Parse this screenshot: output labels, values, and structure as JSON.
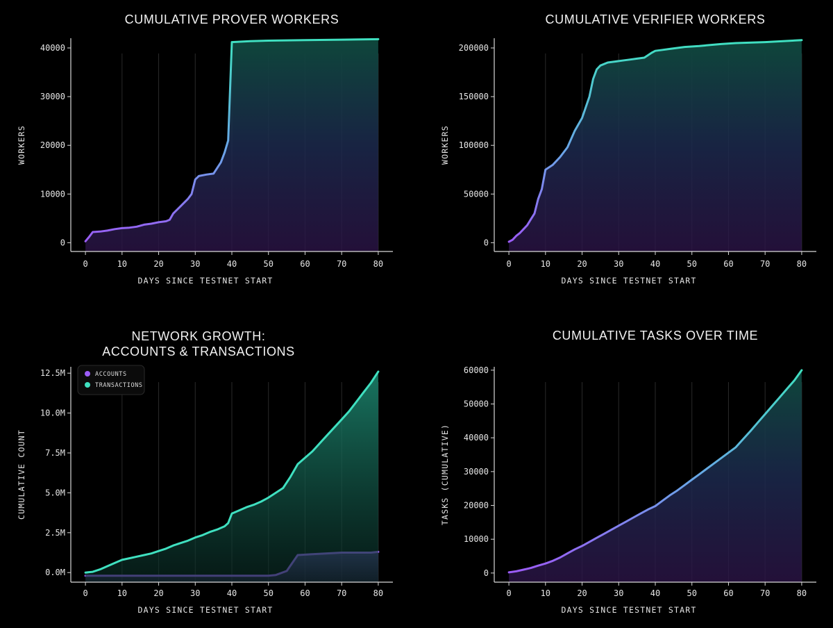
{
  "colors": {
    "background": "#000000",
    "purple": "#9b5cf6",
    "teal": "#3fe0c0",
    "blue": "#6aa5e8",
    "axis": "#d9d9d9",
    "grid": "#2a2a2a"
  },
  "chart_data": [
    {
      "id": "prover",
      "type": "area",
      "title": [
        "CUMULATIVE PROVER WORKERS"
      ],
      "xlabel": "DAYS SINCE TESTNET START",
      "ylabel": "WORKERS",
      "xlim": [
        -4,
        84
      ],
      "ylim": [
        -1800,
        42000
      ],
      "xticks": [
        0,
        10,
        20,
        30,
        40,
        50,
        60,
        70,
        80
      ],
      "yticks": [
        0,
        10000,
        20000,
        30000,
        40000
      ],
      "ytick_labels": [
        "0",
        "10000",
        "20000",
        "30000",
        "40000"
      ],
      "grid": "vertical",
      "gradient": "purple-blue-teal",
      "series": [
        {
          "name": "Prover workers",
          "x": [
            0,
            1,
            2,
            4,
            6,
            8,
            10,
            12,
            14,
            16,
            18,
            20,
            22,
            23,
            24,
            26,
            28,
            29,
            30,
            31,
            33,
            35,
            37,
            38,
            39,
            40,
            45,
            50,
            60,
            70,
            80
          ],
          "y": [
            300,
            1200,
            2200,
            2300,
            2500,
            2800,
            3000,
            3100,
            3300,
            3700,
            3900,
            4200,
            4400,
            4700,
            6000,
            7500,
            9000,
            10000,
            13000,
            13700,
            14000,
            14200,
            16500,
            18500,
            21000,
            41200,
            41400,
            41500,
            41600,
            41700,
            41800
          ]
        }
      ]
    },
    {
      "id": "verifier",
      "type": "area",
      "title": [
        "CUMULATIVE VERIFIER WORKERS"
      ],
      "xlabel": "DAYS SINCE TESTNET START",
      "ylabel": "WORKERS",
      "xlim": [
        -4,
        84
      ],
      "ylim": [
        -9000,
        210000
      ],
      "xticks": [
        0,
        10,
        20,
        30,
        40,
        50,
        60,
        70,
        80
      ],
      "yticks": [
        0,
        50000,
        100000,
        150000,
        200000
      ],
      "ytick_labels": [
        "0",
        "50000",
        "100000",
        "150000",
        "200000"
      ],
      "grid": "vertical",
      "gradient": "purple-blue-teal",
      "series": [
        {
          "name": "Verifier workers",
          "x": [
            0,
            1,
            2,
            3,
            4,
            5,
            6,
            7,
            8,
            9,
            10,
            12,
            14,
            16,
            18,
            20,
            22,
            23,
            24,
            25,
            27,
            29,
            31,
            33,
            35,
            37,
            39,
            40,
            42,
            44,
            46,
            48,
            52,
            58,
            62,
            70,
            80
          ],
          "y": [
            1000,
            3000,
            7000,
            10000,
            14000,
            18000,
            24000,
            30000,
            45000,
            55000,
            75000,
            80000,
            88000,
            98000,
            115000,
            128000,
            150000,
            168000,
            178000,
            182000,
            185000,
            186000,
            187000,
            188000,
            189000,
            190000,
            195000,
            197000,
            198000,
            199000,
            200000,
            201000,
            202000,
            204000,
            205000,
            206000,
            208000
          ]
        }
      ]
    },
    {
      "id": "network",
      "type": "area",
      "title": [
        "NETWORK GROWTH:",
        "ACCOUNTS & TRANSACTIONS"
      ],
      "xlabel": "DAYS SINCE TESTNET START",
      "ylabel": "CUMULATIVE COUNT",
      "xlim": [
        -4,
        84
      ],
      "ylim": [
        -0.6,
        12.9
      ],
      "xticks": [
        0,
        10,
        20,
        30,
        40,
        50,
        60,
        70,
        80
      ],
      "yticks": [
        0,
        2.5,
        5.0,
        7.5,
        10.0,
        12.5
      ],
      "ytick_labels": [
        "0.0M",
        "2.5M",
        "5.0M",
        "7.5M",
        "10.0M",
        "12.5M"
      ],
      "value_unit": "millions",
      "grid": "vertical",
      "legend": "top-left",
      "series": [
        {
          "name": "ACCOUNTS",
          "color": "#9b5cf6",
          "x": [
            0,
            10,
            20,
            30,
            40,
            50,
            52,
            55,
            58,
            62,
            70,
            78,
            80
          ],
          "y": [
            -0.2,
            -0.2,
            -0.2,
            -0.2,
            -0.2,
            -0.2,
            -0.15,
            0.1,
            1.1,
            1.15,
            1.25,
            1.25,
            1.3
          ]
        },
        {
          "name": "TRANSACTIONS",
          "color": "#3fe0c0",
          "x": [
            0,
            2,
            4,
            6,
            8,
            10,
            12,
            14,
            16,
            18,
            20,
            22,
            24,
            26,
            28,
            30,
            32,
            34,
            36,
            38,
            39,
            40,
            42,
            44,
            46,
            48,
            50,
            52,
            54,
            56,
            58,
            60,
            62,
            64,
            66,
            68,
            70,
            72,
            74,
            76,
            78,
            80
          ],
          "y": [
            0,
            0.05,
            0.2,
            0.4,
            0.6,
            0.8,
            0.9,
            1.0,
            1.1,
            1.2,
            1.35,
            1.5,
            1.7,
            1.85,
            2.0,
            2.2,
            2.35,
            2.55,
            2.7,
            2.9,
            3.1,
            3.7,
            3.9,
            4.1,
            4.25,
            4.45,
            4.7,
            5.0,
            5.3,
            6.0,
            6.8,
            7.2,
            7.6,
            8.1,
            8.6,
            9.1,
            9.6,
            10.1,
            10.7,
            11.3,
            11.9,
            12.6
          ]
        }
      ]
    },
    {
      "id": "tasks",
      "type": "area",
      "title": [
        "CUMULATIVE TASKS OVER TIME"
      ],
      "xlabel": "DAYS SINCE TESTNET START",
      "ylabel": "TASKS (CUMULATIVE)",
      "xlim": [
        -4,
        84
      ],
      "ylim": [
        -2700,
        61000
      ],
      "xticks": [
        0,
        10,
        20,
        30,
        40,
        50,
        60,
        70,
        80
      ],
      "yticks": [
        0,
        10000,
        20000,
        30000,
        40000,
        50000,
        60000
      ],
      "ytick_labels": [
        "0",
        "10000",
        "20000",
        "30000",
        "40000",
        "50000",
        "60000"
      ],
      "grid": "vertical",
      "gradient": "purple-blue-teal",
      "series": [
        {
          "name": "Tasks",
          "x": [
            0,
            2,
            4,
            6,
            8,
            10,
            12,
            14,
            16,
            18,
            20,
            22,
            24,
            26,
            28,
            30,
            32,
            34,
            36,
            38,
            40,
            42,
            44,
            46,
            48,
            50,
            52,
            54,
            56,
            58,
            60,
            62,
            64,
            66,
            68,
            70,
            72,
            74,
            76,
            78,
            80
          ],
          "y": [
            200,
            500,
            1000,
            1500,
            2200,
            2800,
            3600,
            4600,
            5800,
            7000,
            8000,
            9200,
            10400,
            11600,
            12800,
            14000,
            15200,
            16400,
            17600,
            18800,
            19800,
            21400,
            23000,
            24400,
            26000,
            27600,
            29200,
            30800,
            32400,
            34000,
            35600,
            37200,
            39600,
            42000,
            44500,
            47000,
            49500,
            52000,
            54500,
            57000,
            60000
          ]
        }
      ]
    }
  ],
  "legend": {
    "accounts": "ACCOUNTS",
    "transactions": "TRANSACTIONS"
  }
}
